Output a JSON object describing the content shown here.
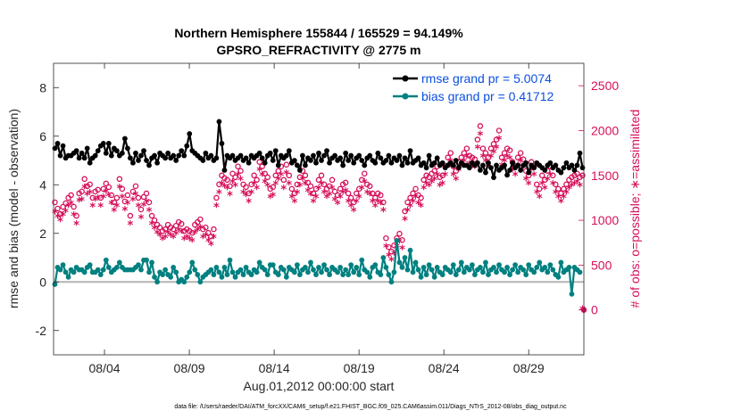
{
  "chart_data": {
    "type": "line",
    "title": "Northern Hemisphere 155844 / 165529 = 94.149%",
    "subtitle": "GPSRO_REFRACTIVITY @ 2775 m",
    "xlabel": "Aug.01,2012 00:00:00 start",
    "ylabel": "rmse and bias (model - observation)",
    "ylabel_right": "# of obs: o=possible; ∗=assimilated",
    "footer": "data file: /Users/raeder/DAI/ATM_forcXX/CAM6_setup/f.e21.FHIST_BGC.f09_025.CAM6assim.011/Diags_NTrS_2012-08/obs_diag_output.nc",
    "xlim": [
      1.0,
      32.25
    ],
    "ylim": [
      -3,
      9
    ],
    "ylim_right": [
      -500,
      2750
    ],
    "xtick_values": [
      4,
      9,
      14,
      19,
      24,
      29
    ],
    "xtick_labels": [
      "08/04",
      "08/09",
      "08/14",
      "08/19",
      "08/24",
      "08/29"
    ],
    "ytick_values": [
      -2,
      0,
      2,
      4,
      6,
      8
    ],
    "ytick_labels": [
      "-2",
      "0",
      "2",
      "4",
      "6",
      "8"
    ],
    "ytick_right_values": [
      0,
      500,
      1000,
      1500,
      2000,
      2500
    ],
    "ytick_right_labels": [
      "0",
      "500",
      "1000",
      "1500",
      "2000",
      "2500"
    ],
    "zero_line": 0,
    "colors": {
      "rmse": "#000000",
      "bias": "#008080",
      "obs": "#d6105a",
      "legend_text": "#0b4fe0",
      "zero_line": "#b3b3b3"
    },
    "legend": [
      {
        "label": "rmse grand pr = 5.0074",
        "color": "#000000"
      },
      {
        "label": "bias grand pr = 0.41712",
        "color": "#008080"
      }
    ],
    "series": [
      {
        "name": "rmse",
        "axis": "left",
        "values": [
          5.5,
          5.7,
          5.2,
          5.6,
          5.1,
          5.2,
          5.2,
          5.3,
          5.4,
          5.1,
          5.3,
          5.1,
          5.5,
          4.9,
          5.1,
          5.2,
          5.4,
          5.6,
          5.7,
          5.3,
          5.7,
          5.2,
          5.5,
          5.4,
          5.2,
          5.3,
          5.9,
          5.5,
          5.1,
          4.9,
          5.3,
          5.0,
          5.2,
          5.4,
          5.0,
          4.8,
          5.1,
          5.2,
          4.9,
          5.3,
          5.2,
          5.1,
          5.3,
          5.1,
          5.2,
          5.0,
          5.2,
          5.4,
          5.2,
          5.6,
          6.1,
          5.4,
          5.3,
          5.2,
          5.1,
          5.0,
          5.3,
          5.1,
          5.2,
          5.0,
          5.1,
          6.6,
          5.7,
          4.6,
          5.2,
          5.1,
          5.2,
          5.0,
          5.1,
          5.2,
          5.0,
          5.1,
          4.9,
          5.2,
          5.1,
          5.2,
          5.3,
          5.1,
          4.9,
          5.2,
          5.3,
          5.0,
          5.4,
          4.8,
          5.2,
          5.1,
          5.2,
          5.4,
          4.9,
          5.0,
          4.8,
          4.6,
          5.2,
          4.8,
          5.1,
          5.0,
          5.2,
          4.9,
          5.3,
          5.0,
          5.2,
          5.4,
          4.9,
          5.1,
          5.2,
          5.0,
          5.1,
          4.8,
          5.3,
          5.0,
          5.2,
          4.9,
          5.1,
          5.2,
          5.0,
          4.8,
          5.1,
          5.2,
          5.0,
          4.9,
          5.3,
          5.1,
          4.9,
          5.0,
          5.2,
          4.9,
          5.1,
          5.0,
          5.2,
          4.8,
          5.1,
          4.9,
          5.4,
          4.9,
          5.0,
          5.1,
          4.8,
          4.9,
          4.7,
          5.2,
          4.8,
          4.9,
          5.1,
          4.8,
          4.9,
          4.7,
          4.8,
          4.9,
          4.8,
          5.0,
          4.7,
          4.9,
          4.8,
          4.8,
          4.7,
          4.9,
          4.8,
          4.9,
          4.6,
          4.8,
          4.5,
          4.9,
          4.7,
          4.3,
          4.8,
          4.6,
          4.7,
          4.8,
          4.4,
          4.6,
          4.9,
          4.7,
          4.8,
          4.6,
          4.8,
          4.9,
          4.5,
          4.8,
          4.7,
          4.9,
          4.8,
          4.7,
          4.6,
          4.8,
          4.9,
          4.7,
          4.8,
          4.6,
          4.5,
          4.7,
          4.9,
          4.7,
          4.8,
          4.6,
          4.8,
          5.3,
          4.7
        ]
      },
      {
        "name": "bias",
        "axis": "left",
        "values": [
          -0.1,
          0.6,
          0.5,
          0.7,
          0.4,
          0.2,
          0.5,
          0.4,
          0.6,
          0.5,
          0.5,
          0.4,
          0.6,
          0.7,
          0.4,
          0.4,
          0.5,
          0.3,
          0.5,
          0.9,
          0.6,
          0.4,
          0.5,
          0.6,
          0.8,
          0.6,
          0.5,
          0.5,
          0.5,
          0.5,
          0.6,
          0.7,
          0.5,
          0.9,
          0.9,
          0.4,
          0.8,
          0.2,
          0.0,
          0.4,
          0.3,
          0.5,
          0.3,
          0.2,
          0.6,
          0.4,
          0.0,
          0.1,
          0.0,
          0.2,
          0.4,
          0.8,
          0.5,
          0.3,
          0.0,
          0.2,
          0.3,
          0.4,
          0.5,
          0.3,
          0.6,
          0.4,
          0.2,
          0.6,
          0.3,
          0.9,
          0.4,
          0.2,
          0.4,
          0.5,
          0.3,
          0.6,
          0.4,
          0.3,
          0.5,
          0.4,
          0.8,
          0.6,
          0.5,
          0.3,
          0.7,
          0.7,
          0.4,
          0.3,
          0.6,
          0.5,
          0.2,
          0.6,
          0.5,
          0.4,
          0.7,
          0.3,
          0.5,
          0.6,
          0.4,
          0.8,
          0.5,
          0.3,
          0.6,
          0.4,
          0.7,
          0.5,
          0.3,
          0.6,
          0.5,
          0.4,
          0.6,
          0.3,
          0.5,
          0.3,
          0.7,
          0.4,
          0.6,
          0.3,
          0.9,
          0.5,
          0.4,
          0.2,
          0.6,
          0.7,
          0.4,
          0.3,
          1.0,
          0.6,
          0.3,
          0.0,
          0.4,
          1.7,
          0.8,
          0.6,
          1.0,
          0.5,
          1.3,
          0.4,
          0.8,
          0.5,
          0.2,
          0.6,
          0.3,
          0.7,
          0.5,
          0.2,
          0.6,
          0.4,
          0.3,
          0.6,
          0.5,
          0.4,
          0.7,
          0.3,
          0.5,
          0.8,
          0.4,
          0.6,
          0.5,
          0.7,
          0.3,
          0.5,
          0.6,
          0.4,
          0.8,
          0.3,
          0.5,
          0.6,
          0.4,
          0.7,
          0.5,
          0.4,
          0.6,
          0.3,
          0.5,
          0.7,
          0.4,
          0.6,
          0.5,
          0.3,
          0.7,
          0.5,
          0.4,
          0.6,
          0.8,
          0.5,
          0.6,
          0.4,
          0.7,
          0.5,
          0.3,
          0.2,
          0.8,
          0.4,
          0.5,
          0.6,
          -0.5,
          0.6,
          0.5,
          0.4
        ]
      },
      {
        "name": "# possible",
        "axis": "right",
        "marker": "o",
        "values": [
          1200,
          1130,
          1070,
          1150,
          1190,
          1250,
          1280,
          1150,
          1050,
          1300,
          1320,
          1460,
          1380,
          1400,
          1250,
          1320,
          1340,
          1250,
          1350,
          1410,
          1370,
          1280,
          1200,
          1250,
          1460,
          1350,
          1210,
          1280,
          1050,
          1320,
          1380,
          1250,
          1120,
          1260,
          1300,
          1200,
          1050,
          1000,
          950,
          920,
          880,
          900,
          950,
          920,
          900,
          940,
          980,
          960,
          880,
          900,
          880,
          860,
          950,
          980,
          1010,
          900,
          920,
          860,
          820,
          900,
          1250,
          1400,
          1500,
          1470,
          1450,
          1380,
          1520,
          1480,
          1600,
          1550,
          1400,
          1370,
          1300,
          1400,
          1500,
          1450,
          1650,
          1600,
          1520,
          1480,
          1350,
          1370,
          1500,
          1550,
          1600,
          1450,
          1620,
          1500,
          1350,
          1300,
          1400,
          1480,
          1550,
          1500,
          1420,
          1380,
          1300,
          1350,
          1450,
          1500,
          1400,
          1350,
          1380,
          1450,
          1320,
          1280,
          1350,
          1400,
          1420,
          1300,
          1250,
          1200,
          1300,
          1350,
          1450,
          1520,
          1400,
          1380,
          1300,
          1250,
          1300,
          1280,
          1200,
          800,
          700,
          650,
          720,
          800,
          850,
          780,
          1100,
          1200,
          1250,
          1300,
          1350,
          1280,
          1250,
          1450,
          1500,
          1480,
          1520,
          1550,
          1600,
          1480,
          1500,
          1600,
          1700,
          1750,
          1600,
          1550,
          1650,
          1700,
          1750,
          1800,
          1720,
          1700,
          1680,
          1900,
          2050,
          1800,
          1750,
          1700,
          1800,
          1850,
          1900,
          2000,
          1700,
          1750,
          1800,
          1780,
          1650,
          1600,
          1700,
          1750,
          1680,
          1550,
          1500,
          1650,
          1600,
          1400,
          1350,
          1500,
          1450,
          1550,
          1600,
          1500,
          1400,
          1350,
          1300,
          1350,
          1400,
          1450,
          1480,
          1500,
          1520,
          1480,
          1500
        ]
      },
      {
        "name": "# assimilated",
        "axis": "right",
        "marker": "*",
        "values": [
          1080,
          1030,
          990,
          1050,
          1090,
          1150,
          1180,
          1050,
          950,
          1210,
          1220,
          1360,
          1280,
          1300,
          1150,
          1220,
          1240,
          1150,
          1250,
          1310,
          1270,
          1180,
          1100,
          1150,
          1360,
          1250,
          1110,
          1180,
          950,
          1220,
          1280,
          1150,
          1020,
          1160,
          1200,
          1100,
          950,
          900,
          850,
          820,
          780,
          800,
          850,
          820,
          800,
          840,
          880,
          860,
          780,
          800,
          780,
          760,
          850,
          880,
          910,
          800,
          820,
          760,
          720,
          800,
          1150,
          1300,
          1400,
          1370,
          1350,
          1280,
          1420,
          1380,
          1500,
          1450,
          1300,
          1270,
          1200,
          1300,
          1400,
          1350,
          1550,
          1500,
          1420,
          1380,
          1250,
          1270,
          1400,
          1450,
          1500,
          1350,
          1520,
          1400,
          1250,
          1200,
          1300,
          1380,
          1450,
          1400,
          1320,
          1280,
          1200,
          1250,
          1350,
          1400,
          1300,
          1250,
          1280,
          1350,
          1220,
          1180,
          1250,
          1300,
          1320,
          1200,
          1150,
          1100,
          1200,
          1250,
          1350,
          1420,
          1300,
          1280,
          1200,
          1150,
          1200,
          1180,
          1100,
          700,
          600,
          550,
          620,
          700,
          750,
          680,
          1000,
          1100,
          1150,
          1200,
          1250,
          1180,
          1150,
          1350,
          1400,
          1380,
          1420,
          1450,
          1500,
          1380,
          1400,
          1500,
          1600,
          1650,
          1500,
          1450,
          1550,
          1600,
          1650,
          1700,
          1620,
          1600,
          1580,
          1800,
          1950,
          1700,
          1650,
          1600,
          1700,
          1750,
          1800,
          1900,
          1600,
          1650,
          1700,
          1680,
          1550,
          1500,
          1600,
          1650,
          1580,
          1450,
          1400,
          1550,
          1500,
          1300,
          1250,
          1400,
          1350,
          1450,
          1500,
          1400,
          1300,
          1250,
          1200,
          1250,
          1300,
          1350,
          1380,
          1400,
          1420,
          1380,
          -0.01
        ]
      }
    ]
  }
}
